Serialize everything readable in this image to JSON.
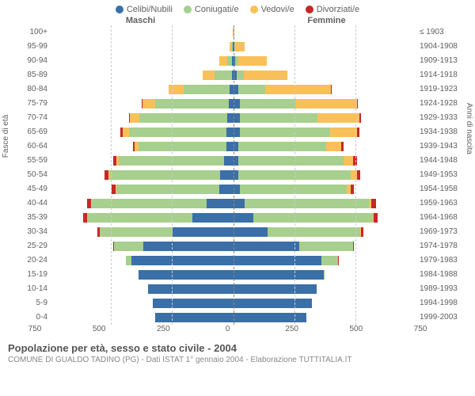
{
  "legend": {
    "items": [
      {
        "label": "Celibi/Nubili",
        "color": "#3a6fa7"
      },
      {
        "label": "Coniugati/e",
        "color": "#a7cf8d"
      },
      {
        "label": "Vedovi/e",
        "color": "#f9c05a"
      },
      {
        "label": "Divorziati/e",
        "color": "#c62828"
      }
    ]
  },
  "header": {
    "male": "Maschi",
    "female": "Femmine"
  },
  "axes": {
    "ylabel_left": "Fasce di età",
    "ylabel_right": "Anni di nascita",
    "max": 750,
    "ticks": [
      750,
      500,
      250,
      0,
      250,
      500,
      750
    ]
  },
  "captions": {
    "title": "Popolazione per età, sesso e stato civile - 2004",
    "subtitle": "COMUNE DI GUALDO TADINO (PG) - Dati ISTAT 1° gennaio 2004 - Elaborazione TUTTITALIA.IT"
  },
  "colors": {
    "celibi": "#3a6fa7",
    "coniugati": "#a7cf8d",
    "vedovi": "#f9c05a",
    "divorziati": "#c62828",
    "grid": "#cccccc",
    "bg": "#ffffff"
  },
  "rows": [
    {
      "age": "100+",
      "birth": "≤ 1903",
      "m": {
        "cel": 0,
        "con": 0,
        "ved": 2,
        "div": 0
      },
      "f": {
        "cel": 0,
        "con": 0,
        "ved": 4,
        "div": 0
      }
    },
    {
      "age": "95-99",
      "birth": "1904-1908",
      "m": {
        "cel": 2,
        "con": 3,
        "ved": 10,
        "div": 0
      },
      "f": {
        "cel": 3,
        "con": 2,
        "ved": 40,
        "div": 0
      }
    },
    {
      "age": "90-94",
      "birth": "1909-1913",
      "m": {
        "cel": 5,
        "con": 20,
        "ved": 35,
        "div": 0
      },
      "f": {
        "cel": 8,
        "con": 10,
        "ved": 120,
        "div": 0
      }
    },
    {
      "age": "85-89",
      "birth": "1914-1918",
      "m": {
        "cel": 8,
        "con": 70,
        "ved": 50,
        "div": 0
      },
      "f": {
        "cel": 12,
        "con": 30,
        "ved": 180,
        "div": 0
      }
    },
    {
      "age": "80-84",
      "birth": "1919-1923",
      "m": {
        "cel": 15,
        "con": 190,
        "ved": 60,
        "div": 0
      },
      "f": {
        "cel": 20,
        "con": 110,
        "ved": 270,
        "div": 3
      }
    },
    {
      "age": "75-79",
      "birth": "1924-1928",
      "m": {
        "cel": 20,
        "con": 300,
        "ved": 55,
        "div": 3
      },
      "f": {
        "cel": 25,
        "con": 230,
        "ved": 250,
        "div": 5
      }
    },
    {
      "age": "70-74",
      "birth": "1929-1933",
      "m": {
        "cel": 25,
        "con": 360,
        "ved": 40,
        "div": 5
      },
      "f": {
        "cel": 25,
        "con": 320,
        "ved": 170,
        "div": 8
      }
    },
    {
      "age": "65-69",
      "birth": "1934-1938",
      "m": {
        "cel": 30,
        "con": 400,
        "ved": 25,
        "div": 8
      },
      "f": {
        "cel": 25,
        "con": 370,
        "ved": 110,
        "div": 10
      }
    },
    {
      "age": "60-64",
      "birth": "1939-1943",
      "m": {
        "cel": 30,
        "con": 360,
        "ved": 15,
        "div": 8
      },
      "f": {
        "cel": 20,
        "con": 360,
        "ved": 60,
        "div": 10
      }
    },
    {
      "age": "55-59",
      "birth": "1944-1948",
      "m": {
        "cel": 40,
        "con": 430,
        "ved": 12,
        "div": 12
      },
      "f": {
        "cel": 20,
        "con": 430,
        "ved": 40,
        "div": 15
      }
    },
    {
      "age": "50-54",
      "birth": "1949-1953",
      "m": {
        "cel": 55,
        "con": 450,
        "ved": 8,
        "div": 15
      },
      "f": {
        "cel": 20,
        "con": 460,
        "ved": 25,
        "div": 15
      }
    },
    {
      "age": "45-49",
      "birth": "1954-1958",
      "m": {
        "cel": 60,
        "con": 420,
        "ved": 5,
        "div": 15
      },
      "f": {
        "cel": 25,
        "con": 440,
        "ved": 15,
        "div": 15
      }
    },
    {
      "age": "40-44",
      "birth": "1959-1963",
      "m": {
        "cel": 110,
        "con": 470,
        "ved": 3,
        "div": 18
      },
      "f": {
        "cel": 45,
        "con": 510,
        "ved": 10,
        "div": 20
      }
    },
    {
      "age": "35-39",
      "birth": "1964-1968",
      "m": {
        "cel": 170,
        "con": 430,
        "ved": 2,
        "div": 15
      },
      "f": {
        "cel": 80,
        "con": 490,
        "ved": 5,
        "div": 15
      }
    },
    {
      "age": "30-34",
      "birth": "1969-1973",
      "m": {
        "cel": 250,
        "con": 300,
        "ved": 0,
        "div": 8
      },
      "f": {
        "cel": 140,
        "con": 380,
        "ved": 3,
        "div": 10
      }
    },
    {
      "age": "25-29",
      "birth": "1974-1978",
      "m": {
        "cel": 370,
        "con": 120,
        "ved": 0,
        "div": 3
      },
      "f": {
        "cel": 270,
        "con": 220,
        "ved": 0,
        "div": 5
      }
    },
    {
      "age": "20-24",
      "birth": "1979-1983",
      "m": {
        "cel": 420,
        "con": 20,
        "ved": 0,
        "div": 0
      },
      "f": {
        "cel": 360,
        "con": 70,
        "ved": 0,
        "div": 2
      }
    },
    {
      "age": "15-19",
      "birth": "1984-1988",
      "m": {
        "cel": 390,
        "con": 0,
        "ved": 0,
        "div": 0
      },
      "f": {
        "cel": 370,
        "con": 3,
        "ved": 0,
        "div": 0
      }
    },
    {
      "age": "10-14",
      "birth": "1989-1993",
      "m": {
        "cel": 350,
        "con": 0,
        "ved": 0,
        "div": 0
      },
      "f": {
        "cel": 340,
        "con": 0,
        "ved": 0,
        "div": 0
      }
    },
    {
      "age": "5-9",
      "birth": "1994-1998",
      "m": {
        "cel": 330,
        "con": 0,
        "ved": 0,
        "div": 0
      },
      "f": {
        "cel": 320,
        "con": 0,
        "ved": 0,
        "div": 0
      }
    },
    {
      "age": "0-4",
      "birth": "1999-2003",
      "m": {
        "cel": 320,
        "con": 0,
        "ved": 0,
        "div": 0
      },
      "f": {
        "cel": 300,
        "con": 0,
        "ved": 0,
        "div": 0
      }
    }
  ]
}
